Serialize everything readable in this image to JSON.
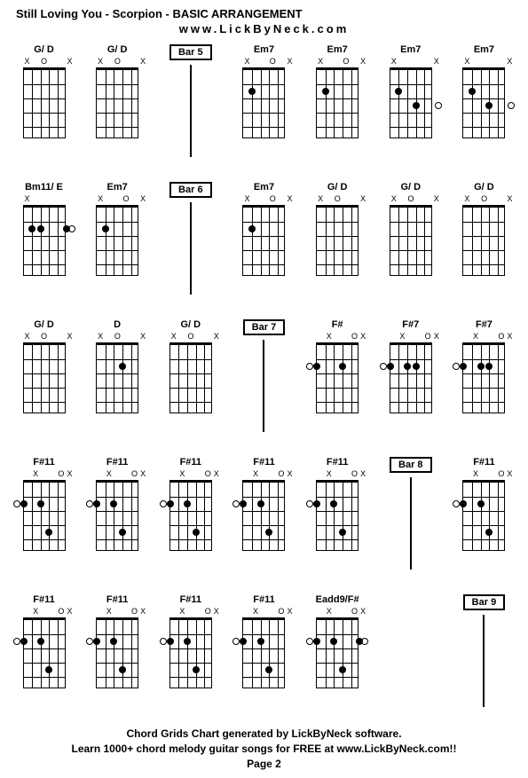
{
  "title": "Still Loving You - Scorpion - BASIC ARRANGEMENT",
  "subtitle": "www.LickByNeck.com",
  "footer_line1": "Chord Grids Chart generated by LickByNeck software.",
  "footer_line2": "Learn 1000+ chord melody guitar songs for FREE at www.LickByNeck.com!!",
  "footer_page": "Page 2",
  "rows": [
    [
      {
        "type": "chord",
        "name": "G/ D",
        "top": [
          "X",
          "",
          "O",
          "",
          "",
          "X"
        ],
        "dots": [],
        "edge": []
      },
      {
        "type": "chord",
        "name": "G/ D",
        "top": [
          "X",
          "",
          "O",
          "",
          "",
          "X"
        ],
        "dots": [],
        "edge": []
      },
      {
        "type": "bar",
        "label": "Bar 5"
      },
      {
        "type": "chord",
        "name": "Em7",
        "top": [
          "X",
          "",
          "",
          "O",
          "",
          "X"
        ],
        "dots": [
          {
            "s": 2,
            "f": 2
          }
        ],
        "edge": []
      },
      {
        "type": "chord",
        "name": "Em7",
        "top": [
          "X",
          "",
          "",
          "O",
          "",
          "X"
        ],
        "dots": [
          {
            "s": 2,
            "f": 2
          }
        ],
        "edge": []
      },
      {
        "type": "chord",
        "name": "Em7",
        "top": [
          "X",
          "",
          "",
          "",
          "",
          "X"
        ],
        "dots": [
          {
            "s": 2,
            "f": 2
          },
          {
            "s": 4,
            "f": 3
          }
        ],
        "edge": [
          {
            "side": "right",
            "f": 3
          }
        ]
      },
      {
        "type": "chord",
        "name": "Em7",
        "top": [
          "X",
          "",
          "",
          "",
          "",
          "X"
        ],
        "dots": [
          {
            "s": 2,
            "f": 2
          },
          {
            "s": 4,
            "f": 3
          }
        ],
        "edge": [
          {
            "side": "right",
            "f": 3
          }
        ]
      }
    ],
    [
      {
        "type": "chord",
        "name": "Bm11/ E",
        "top": [
          "X",
          "",
          "",
          "",
          "",
          ""
        ],
        "dots": [
          {
            "s": 2,
            "f": 2
          },
          {
            "s": 3,
            "f": 2
          },
          {
            "s": 6,
            "f": 2
          }
        ],
        "edge": [
          {
            "side": "right",
            "f": 2
          }
        ]
      },
      {
        "type": "chord",
        "name": "Em7",
        "top": [
          "X",
          "",
          "",
          "O",
          "",
          "X"
        ],
        "dots": [
          {
            "s": 2,
            "f": 2
          }
        ],
        "edge": []
      },
      {
        "type": "bar",
        "label": "Bar 6"
      },
      {
        "type": "chord",
        "name": "Em7",
        "top": [
          "X",
          "",
          "",
          "O",
          "",
          "X"
        ],
        "dots": [
          {
            "s": 2,
            "f": 2
          }
        ],
        "edge": []
      },
      {
        "type": "chord",
        "name": "G/ D",
        "top": [
          "X",
          "",
          "O",
          "",
          "",
          "X"
        ],
        "dots": [],
        "edge": []
      },
      {
        "type": "chord",
        "name": "G/ D",
        "top": [
          "X",
          "",
          "O",
          "",
          "",
          "X"
        ],
        "dots": [],
        "edge": []
      },
      {
        "type": "chord",
        "name": "G/ D",
        "top": [
          "X",
          "",
          "O",
          "",
          "",
          "X"
        ],
        "dots": [],
        "edge": []
      }
    ],
    [
      {
        "type": "chord",
        "name": "G/ D",
        "top": [
          "X",
          "",
          "O",
          "",
          "",
          "X"
        ],
        "dots": [],
        "edge": []
      },
      {
        "type": "chord",
        "name": "D",
        "top": [
          "X",
          "",
          "O",
          "",
          "",
          "X"
        ],
        "dots": [
          {
            "s": 4,
            "f": 2
          }
        ],
        "edge": []
      },
      {
        "type": "chord",
        "name": "G/ D",
        "top": [
          "X",
          "",
          "O",
          "",
          "",
          "X"
        ],
        "dots": [],
        "edge": []
      },
      {
        "type": "bar",
        "label": "Bar 7"
      },
      {
        "type": "chord",
        "name": "F#",
        "top": [
          "",
          "X",
          "",
          "",
          "O",
          "X"
        ],
        "dots": [
          {
            "s": 1,
            "f": 2
          },
          {
            "s": 4,
            "f": 2
          }
        ],
        "edge": [
          {
            "side": "left",
            "f": 2
          }
        ]
      },
      {
        "type": "chord",
        "name": "F#7",
        "top": [
          "",
          "X",
          "",
          "",
          "O",
          "X"
        ],
        "dots": [
          {
            "s": 1,
            "f": 2
          },
          {
            "s": 3,
            "f": 2
          },
          {
            "s": 4,
            "f": 2
          }
        ],
        "edge": [
          {
            "side": "left",
            "f": 2
          }
        ]
      },
      {
        "type": "chord",
        "name": "F#7",
        "top": [
          "",
          "X",
          "",
          "",
          "O",
          "X"
        ],
        "dots": [
          {
            "s": 1,
            "f": 2
          },
          {
            "s": 3,
            "f": 2
          },
          {
            "s": 4,
            "f": 2
          }
        ],
        "edge": [
          {
            "side": "left",
            "f": 2
          }
        ]
      }
    ],
    [
      {
        "type": "chord",
        "name": "F#11",
        "top": [
          "",
          "X",
          "",
          "",
          "O",
          "X"
        ],
        "dots": [
          {
            "s": 1,
            "f": 2
          },
          {
            "s": 3,
            "f": 2
          },
          {
            "s": 4,
            "f": 4
          }
        ],
        "edge": [
          {
            "side": "left",
            "f": 2
          }
        ]
      },
      {
        "type": "chord",
        "name": "F#11",
        "top": [
          "",
          "X",
          "",
          "",
          "O",
          "X"
        ],
        "dots": [
          {
            "s": 1,
            "f": 2
          },
          {
            "s": 3,
            "f": 2
          },
          {
            "s": 4,
            "f": 4
          }
        ],
        "edge": [
          {
            "side": "left",
            "f": 2
          }
        ]
      },
      {
        "type": "chord",
        "name": "F#11",
        "top": [
          "",
          "X",
          "",
          "",
          "O",
          "X"
        ],
        "dots": [
          {
            "s": 1,
            "f": 2
          },
          {
            "s": 3,
            "f": 2
          },
          {
            "s": 4,
            "f": 4
          }
        ],
        "edge": [
          {
            "side": "left",
            "f": 2
          }
        ]
      },
      {
        "type": "chord",
        "name": "F#11",
        "top": [
          "",
          "X",
          "",
          "",
          "O",
          "X"
        ],
        "dots": [
          {
            "s": 1,
            "f": 2
          },
          {
            "s": 3,
            "f": 2
          },
          {
            "s": 4,
            "f": 4
          }
        ],
        "edge": [
          {
            "side": "left",
            "f": 2
          }
        ]
      },
      {
        "type": "chord",
        "name": "F#11",
        "top": [
          "",
          "X",
          "",
          "",
          "O",
          "X"
        ],
        "dots": [
          {
            "s": 1,
            "f": 2
          },
          {
            "s": 3,
            "f": 2
          },
          {
            "s": 4,
            "f": 4
          }
        ],
        "edge": [
          {
            "side": "left",
            "f": 2
          }
        ]
      },
      {
        "type": "bar",
        "label": "Bar 8"
      },
      {
        "type": "chord",
        "name": "F#11",
        "top": [
          "",
          "X",
          "",
          "",
          "O",
          "X"
        ],
        "dots": [
          {
            "s": 1,
            "f": 2
          },
          {
            "s": 3,
            "f": 2
          },
          {
            "s": 4,
            "f": 4
          }
        ],
        "edge": [
          {
            "side": "left",
            "f": 2
          }
        ]
      }
    ],
    [
      {
        "type": "chord",
        "name": "F#11",
        "top": [
          "",
          "X",
          "",
          "",
          "O",
          "X"
        ],
        "dots": [
          {
            "s": 1,
            "f": 2
          },
          {
            "s": 3,
            "f": 2
          },
          {
            "s": 4,
            "f": 4
          }
        ],
        "edge": [
          {
            "side": "left",
            "f": 2
          }
        ]
      },
      {
        "type": "chord",
        "name": "F#11",
        "top": [
          "",
          "X",
          "",
          "",
          "O",
          "X"
        ],
        "dots": [
          {
            "s": 1,
            "f": 2
          },
          {
            "s": 3,
            "f": 2
          },
          {
            "s": 4,
            "f": 4
          }
        ],
        "edge": [
          {
            "side": "left",
            "f": 2
          }
        ]
      },
      {
        "type": "chord",
        "name": "F#11",
        "top": [
          "",
          "X",
          "",
          "",
          "O",
          "X"
        ],
        "dots": [
          {
            "s": 1,
            "f": 2
          },
          {
            "s": 3,
            "f": 2
          },
          {
            "s": 4,
            "f": 4
          }
        ],
        "edge": [
          {
            "side": "left",
            "f": 2
          }
        ]
      },
      {
        "type": "chord",
        "name": "F#11",
        "top": [
          "",
          "X",
          "",
          "",
          "O",
          "X"
        ],
        "dots": [
          {
            "s": 1,
            "f": 2
          },
          {
            "s": 3,
            "f": 2
          },
          {
            "s": 4,
            "f": 4
          }
        ],
        "edge": [
          {
            "side": "left",
            "f": 2
          }
        ]
      },
      {
        "type": "chord",
        "name": "Eadd9/F#",
        "top": [
          "",
          "X",
          "",
          "",
          "O",
          "X"
        ],
        "dots": [
          {
            "s": 1,
            "f": 2
          },
          {
            "s": 3,
            "f": 2
          },
          {
            "s": 4,
            "f": 4
          },
          {
            "s": 6,
            "f": 2
          }
        ],
        "edge": [
          {
            "side": "left",
            "f": 2
          },
          {
            "side": "right",
            "f": 2
          }
        ]
      },
      {
        "type": "blank"
      },
      {
        "type": "bar",
        "label": "Bar 9"
      }
    ]
  ],
  "grid": {
    "strings": 6,
    "frets": 5,
    "width": 48,
    "height": 80,
    "colors": {
      "line": "#000000",
      "dot": "#000000",
      "bg": "#ffffff"
    }
  }
}
